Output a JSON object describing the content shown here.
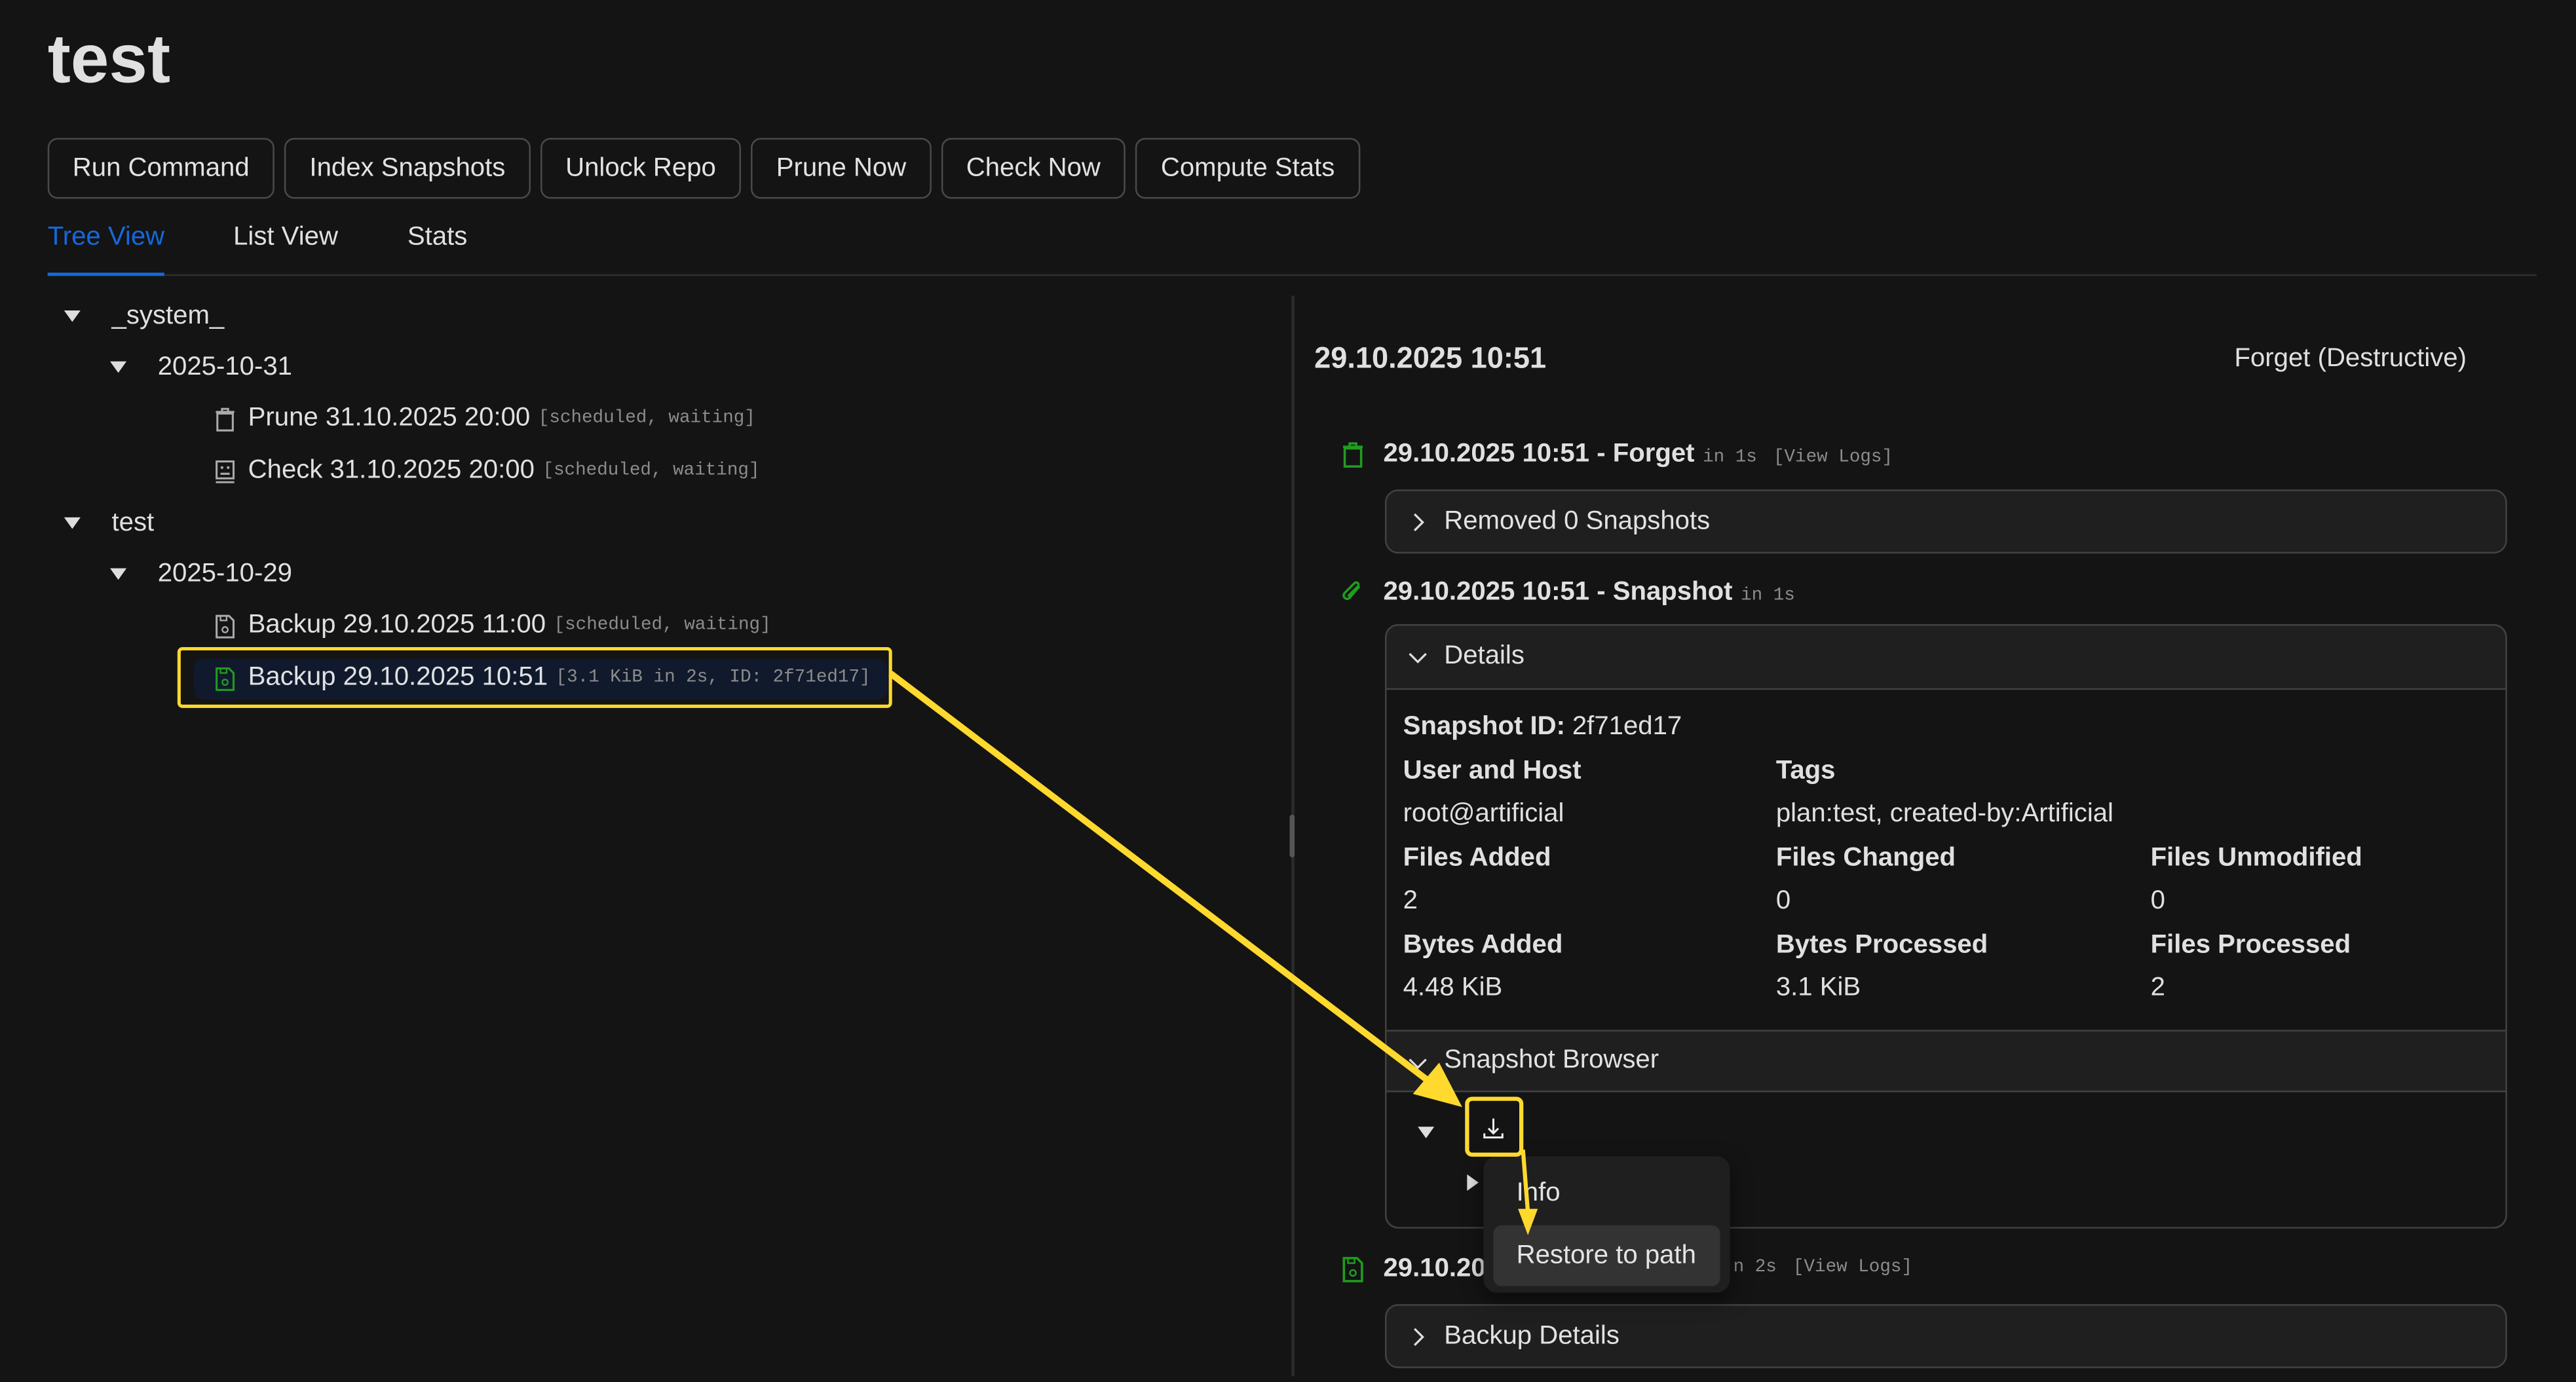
{
  "page": {
    "title": "test"
  },
  "toolbar": {
    "buttons": [
      "Run Command",
      "Index Snapshots",
      "Unlock Repo",
      "Prune Now",
      "Check Now",
      "Compute Stats"
    ]
  },
  "tabs": [
    {
      "label": "Tree View",
      "active": true
    },
    {
      "label": "List View"
    },
    {
      "label": "Stats"
    }
  ],
  "tree": {
    "groups": [
      {
        "label": "_system_",
        "dates": [
          {
            "label": "2025-10-31",
            "items": [
              {
                "icon": "trash-icon",
                "label": "Prune 31.10.2025 20:00",
                "meta": "[scheduled, waiting]"
              },
              {
                "icon": "check-icon",
                "label": "Check 31.10.2025 20:00",
                "meta": "[scheduled, waiting]"
              }
            ]
          }
        ]
      },
      {
        "label": "test",
        "dates": [
          {
            "label": "2025-10-29",
            "items": [
              {
                "icon": "save-icon",
                "label": "Backup 29.10.2025 11:00",
                "meta": "[scheduled, waiting]"
              },
              {
                "icon": "save-icon",
                "label": "Backup 29.10.2025 10:51",
                "meta": "[3.1 KiB in 2s, ID: 2f71ed17]",
                "selected": true
              }
            ]
          }
        ]
      }
    ]
  },
  "detail": {
    "title": "29.10.2025 10:51",
    "forget_button": "Forget (Destructive)",
    "forget_event": {
      "title": "29.10.2025 10:51 - Forget",
      "duration": "in 1s",
      "logs": "[View Logs]",
      "panel": "Removed 0 Snapshots"
    },
    "snapshot_event": {
      "title": "29.10.2025 10:51 - Snapshot",
      "duration": "in 1s",
      "panel": "Details"
    },
    "snapshot_details": {
      "snapshot_id_label": "Snapshot ID:",
      "snapshot_id": "2f71ed17",
      "user_host_label": "User and Host",
      "user_host": "root@artificial",
      "tags_label": "Tags",
      "tags": "plan:test, created-by:Artificial",
      "files_added_label": "Files Added",
      "files_added": "2",
      "files_changed_label": "Files Changed",
      "files_changed": "0",
      "files_unmodified_label": "Files Unmodified",
      "files_unmodified": "0",
      "bytes_added_label": "Bytes Added",
      "bytes_added": "4.48 KiB",
      "bytes_processed_label": "Bytes Processed",
      "bytes_processed": "3.1 KiB",
      "files_processed_label": "Files Processed",
      "files_processed": "2"
    },
    "snapshot_browser": {
      "label": "Snapshot Browser"
    },
    "context_menu": {
      "items": [
        "Info",
        "Restore to path"
      ],
      "highlighted": "Restore to path"
    },
    "backup_event": {
      "title": "29.10.20",
      "duration": "n 2s",
      "logs": "[View Logs]",
      "panel": "Backup Details"
    }
  },
  "colors": {
    "accent": "#1668dc",
    "success": "#1f9d1f",
    "annotation": "#ffd92e",
    "selected_bg": "#111a2c"
  }
}
